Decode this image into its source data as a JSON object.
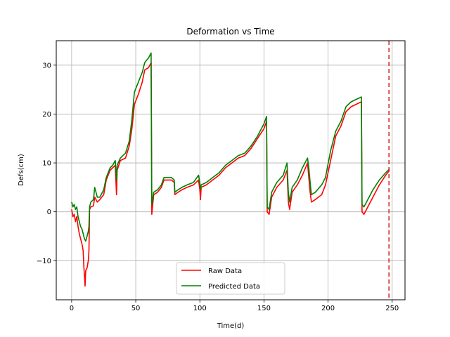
{
  "chart_data": {
    "type": "line",
    "title": "Deformation vs Time",
    "xlabel": "Time(d)",
    "ylabel": "Defs(cm)",
    "xlim": [
      -12,
      260
    ],
    "ylim": [
      -18,
      35
    ],
    "xticks": [
      0,
      50,
      100,
      150,
      200,
      250
    ],
    "yticks": [
      -10,
      0,
      10,
      20,
      30
    ],
    "xtick_labels": [
      "0",
      "50",
      "100",
      "150",
      "200",
      "250"
    ],
    "ytick_labels": [
      "−10",
      "0",
      "10",
      "20",
      "30"
    ],
    "grid": true,
    "legend_position": "bottom-center",
    "vertical_line": {
      "x": 247.5,
      "color": "#d62728",
      "style": "dashed"
    },
    "series": [
      {
        "name": "Raw Data",
        "color": "#ff0000",
        "points": [
          [
            0,
            0.5
          ],
          [
            1,
            -1.0
          ],
          [
            2,
            -0.5
          ],
          [
            3,
            -2.0
          ],
          [
            4,
            -1.0
          ],
          [
            5,
            -3.0
          ],
          [
            6,
            -4.5
          ],
          [
            7,
            -5.5
          ],
          [
            8,
            -6.5
          ],
          [
            9,
            -8.0
          ],
          [
            9.5,
            -11.0
          ],
          [
            10,
            -13.0
          ],
          [
            10.5,
            -15.2
          ],
          [
            11,
            -12.0
          ],
          [
            12,
            -11.5
          ],
          [
            13,
            -10.0
          ],
          [
            13.5,
            -8.0
          ],
          [
            14,
            0.5
          ],
          [
            15,
            1.0
          ],
          [
            17,
            1.2
          ],
          [
            18,
            3.0
          ],
          [
            20,
            2.0
          ],
          [
            22,
            2.5
          ],
          [
            25,
            3.5
          ],
          [
            27,
            6.5
          ],
          [
            30,
            8.5
          ],
          [
            32,
            9.0
          ],
          [
            34,
            9.5
          ],
          [
            35,
            3.5
          ],
          [
            35.5,
            8.5
          ],
          [
            38,
            10.5
          ],
          [
            42,
            11.0
          ],
          [
            45,
            13.5
          ],
          [
            47,
            17.0
          ],
          [
            49,
            22.0
          ],
          [
            52,
            24.0
          ],
          [
            55,
            26.5
          ],
          [
            57,
            29.0
          ],
          [
            60,
            29.5
          ],
          [
            62,
            30.5
          ],
          [
            62.5,
            -0.5
          ],
          [
            64,
            3.5
          ],
          [
            67,
            4.0
          ],
          [
            70,
            5.0
          ],
          [
            72,
            6.5
          ],
          [
            75,
            6.5
          ],
          [
            78,
            6.5
          ],
          [
            80,
            6.0
          ],
          [
            80.5,
            3.5
          ],
          [
            83,
            4.0
          ],
          [
            86,
            4.5
          ],
          [
            90,
            5.0
          ],
          [
            95,
            5.5
          ],
          [
            99,
            6.5
          ],
          [
            100,
            4.5
          ],
          [
            100.5,
            2.5
          ],
          [
            101,
            5.0
          ],
          [
            105,
            5.5
          ],
          [
            110,
            6.5
          ],
          [
            115,
            7.5
          ],
          [
            120,
            9.0
          ],
          [
            125,
            10.0
          ],
          [
            130,
            11.0
          ],
          [
            135,
            11.5
          ],
          [
            140,
            13.0
          ],
          [
            145,
            15.0
          ],
          [
            150,
            17.0
          ],
          [
            152,
            18.5
          ],
          [
            152.5,
            0.0
          ],
          [
            154,
            -0.5
          ],
          [
            156,
            3.0
          ],
          [
            160,
            5.0
          ],
          [
            165,
            6.5
          ],
          [
            168,
            8.5
          ],
          [
            169,
            2.0
          ],
          [
            170,
            0.5
          ],
          [
            172,
            4.0
          ],
          [
            176,
            5.5
          ],
          [
            180,
            7.5
          ],
          [
            184,
            10.0
          ],
          [
            185,
            7.0
          ],
          [
            186,
            4.0
          ],
          [
            187,
            2.0
          ],
          [
            190,
            2.5
          ],
          [
            195,
            3.5
          ],
          [
            198,
            5.5
          ],
          [
            202,
            10.5
          ],
          [
            206,
            15.5
          ],
          [
            210,
            17.5
          ],
          [
            214,
            20.5
          ],
          [
            218,
            21.5
          ],
          [
            222,
            22.0
          ],
          [
            226,
            22.5
          ],
          [
            226.5,
            0.0
          ],
          [
            228,
            -0.5
          ],
          [
            231,
            1.0
          ],
          [
            235,
            3.0
          ],
          [
            240,
            5.5
          ],
          [
            245,
            7.5
          ],
          [
            248,
            8.5
          ]
        ]
      },
      {
        "name": "Predicted Data",
        "color": "#008000",
        "points": [
          [
            0,
            2.0
          ],
          [
            1,
            1.0
          ],
          [
            2,
            1.5
          ],
          [
            3,
            0.5
          ],
          [
            4,
            1.0
          ],
          [
            5,
            -1.0
          ],
          [
            6,
            -2.0
          ],
          [
            7,
            -3.0
          ],
          [
            8,
            -3.5
          ],
          [
            9,
            -4.5
          ],
          [
            10,
            -5.5
          ],
          [
            11,
            -6.0
          ],
          [
            12,
            -5.0
          ],
          [
            13,
            -4.0
          ],
          [
            13.5,
            -3.0
          ],
          [
            14,
            1.0
          ],
          [
            15,
            2.0
          ],
          [
            17,
            2.5
          ],
          [
            18,
            5.0
          ],
          [
            20,
            3.0
          ],
          [
            22,
            3.0
          ],
          [
            25,
            4.5
          ],
          [
            27,
            7.0
          ],
          [
            30,
            9.0
          ],
          [
            32,
            9.5
          ],
          [
            34,
            10.5
          ],
          [
            35,
            6.5
          ],
          [
            35.5,
            9.5
          ],
          [
            38,
            11.0
          ],
          [
            42,
            12.0
          ],
          [
            45,
            14.5
          ],
          [
            47,
            19.0
          ],
          [
            49,
            24.5
          ],
          [
            52,
            26.5
          ],
          [
            55,
            28.5
          ],
          [
            57,
            30.5
          ],
          [
            60,
            31.5
          ],
          [
            62,
            32.5
          ],
          [
            62.5,
            1.5
          ],
          [
            64,
            4.0
          ],
          [
            67,
            4.5
          ],
          [
            70,
            5.5
          ],
          [
            72,
            7.0
          ],
          [
            75,
            7.0
          ],
          [
            78,
            7.0
          ],
          [
            80,
            6.5
          ],
          [
            80.5,
            4.0
          ],
          [
            83,
            4.5
          ],
          [
            86,
            5.0
          ],
          [
            90,
            5.5
          ],
          [
            95,
            6.0
          ],
          [
            99,
            7.5
          ],
          [
            100,
            6.0
          ],
          [
            100.5,
            4.5
          ],
          [
            101,
            5.5
          ],
          [
            105,
            6.0
          ],
          [
            110,
            7.0
          ],
          [
            115,
            8.0
          ],
          [
            120,
            9.5
          ],
          [
            125,
            10.5
          ],
          [
            130,
            11.5
          ],
          [
            135,
            12.0
          ],
          [
            140,
            13.5
          ],
          [
            145,
            15.5
          ],
          [
            150,
            18.0
          ],
          [
            152,
            19.5
          ],
          [
            152.5,
            1.0
          ],
          [
            154,
            0.5
          ],
          [
            156,
            4.0
          ],
          [
            160,
            6.0
          ],
          [
            165,
            7.5
          ],
          [
            168,
            10.0
          ],
          [
            169,
            4.0
          ],
          [
            170,
            2.0
          ],
          [
            172,
            5.0
          ],
          [
            176,
            6.5
          ],
          [
            180,
            9.0
          ],
          [
            184,
            11.0
          ],
          [
            185,
            9.0
          ],
          [
            186,
            6.0
          ],
          [
            187,
            3.5
          ],
          [
            190,
            4.0
          ],
          [
            195,
            5.5
          ],
          [
            198,
            7.0
          ],
          [
            202,
            12.5
          ],
          [
            206,
            16.5
          ],
          [
            210,
            18.5
          ],
          [
            214,
            21.5
          ],
          [
            218,
            22.5
          ],
          [
            222,
            23.0
          ],
          [
            226,
            23.5
          ],
          [
            226.5,
            1.5
          ],
          [
            228,
            1.0
          ],
          [
            231,
            2.5
          ],
          [
            235,
            4.5
          ],
          [
            240,
            6.5
          ],
          [
            245,
            8.0
          ],
          [
            248,
            8.8
          ]
        ]
      }
    ]
  }
}
